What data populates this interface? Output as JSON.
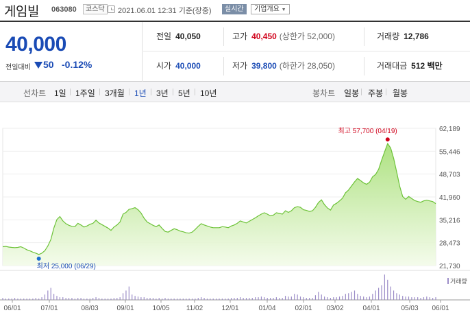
{
  "header": {
    "name": "게임빌",
    "code": "063080",
    "market": "코스닥",
    "timestamp": "2021.06.01 12:31  기준(장중)",
    "realtime": "실시간",
    "company_info": "기업개요"
  },
  "quote": {
    "price": "40,000",
    "compare_label": "전일대비",
    "change": "50",
    "change_rate": "-0.12%",
    "prev_close_label": "전일",
    "prev_close": "40,050",
    "high_label": "고가",
    "high": "40,450",
    "upper_limit": "(상한가 52,000)",
    "volume_label": "거래량",
    "volume": "12,786",
    "open_label": "시가",
    "open": "40,000",
    "low_label": "저가",
    "low": "39,800",
    "lower_limit": "(하한가 28,050)",
    "amount_label": "거래대금",
    "amount": "512 백만",
    "colors": {
      "up": "#d0021b",
      "down": "#1a4bb5"
    }
  },
  "tabs": {
    "line_label": "선차트",
    "periods": [
      "1일",
      "1주일",
      "3개월",
      "1년",
      "3년",
      "5년",
      "10년"
    ],
    "active_period": "1년",
    "candle_label": "봉차트",
    "candles": [
      "일봉",
      "주봉",
      "월봉"
    ]
  },
  "chart_data": {
    "type": "area",
    "x_start": "06/01",
    "x_end": "06/01",
    "x_tick_labels": [
      "06/01",
      "07/01",
      "08/03",
      "09/01",
      "10/05",
      "11/02",
      "12/01",
      "01/04",
      "02/01",
      "03/02",
      "04/01",
      "05/03",
      "06/01"
    ],
    "y_tick_labels": [
      "62,189",
      "55,446",
      "48,703",
      "41,960",
      "35,216",
      "28,473",
      "21,730"
    ],
    "ylim": [
      21730,
      62189
    ],
    "max_annotation": "최고 57,700 (04/19)",
    "min_annotation": "최저 25,000 (06/29)",
    "volume_label": "거래량",
    "prices": [
      27300,
      27400,
      27200,
      27100,
      27000,
      27100,
      27300,
      26900,
      26400,
      26100,
      25700,
      25400,
      25000,
      25400,
      26100,
      27500,
      29400,
      32800,
      35300,
      36200,
      34900,
      34100,
      33600,
      33300,
      33200,
      34200,
      33700,
      33100,
      33400,
      33900,
      34200,
      35100,
      34300,
      33800,
      33300,
      32800,
      32100,
      33100,
      33700,
      34600,
      36900,
      37400,
      38300,
      38500,
      38800,
      38200,
      37200,
      35700,
      34600,
      34100,
      33600,
      33200,
      33700,
      32700,
      31800,
      31600,
      32100,
      32600,
      32300,
      31900,
      31700,
      31400,
      31300,
      31600,
      32400,
      33300,
      34100,
      33700,
      33400,
      33100,
      32900,
      32900,
      32900,
      33200,
      33100,
      32900,
      33400,
      33700,
      34200,
      34900,
      34600,
      34300,
      34800,
      35300,
      35800,
      36400,
      36900,
      37300,
      36900,
      36400,
      36600,
      37300,
      37100,
      36900,
      37900,
      37400,
      37900,
      38800,
      39100,
      38900,
      38200,
      38000,
      37700,
      37900,
      38900,
      40300,
      41100,
      39700,
      38700,
      38100,
      39600,
      40100,
      40800,
      41600,
      43200,
      44000,
      45200,
      46400,
      47400,
      46800,
      46100,
      45700,
      46300,
      47900,
      48600,
      50100,
      52800,
      55300,
      57700,
      56400,
      53300,
      49400,
      45200,
      42100,
      41300,
      42100,
      41500,
      40900,
      40600,
      40400,
      40800,
      41000,
      40800,
      40600,
      40000
    ],
    "volumes": [
      3,
      2,
      2,
      2,
      3,
      2,
      2,
      2,
      2,
      2,
      2,
      3,
      2,
      4,
      8,
      14,
      18,
      9,
      6,
      4,
      4,
      3,
      3,
      3,
      2,
      3,
      3,
      2,
      2,
      2,
      3,
      4,
      3,
      2,
      2,
      2,
      2,
      3,
      3,
      4,
      10,
      14,
      20,
      8,
      6,
      5,
      4,
      4,
      3,
      3,
      3,
      2,
      3,
      2,
      3,
      2,
      2,
      2,
      2,
      2,
      2,
      2,
      2,
      2,
      2,
      3,
      4,
      3,
      2,
      2,
      2,
      2,
      2,
      2,
      2,
      2,
      3,
      3,
      3,
      4,
      3,
      3,
      3,
      3,
      4,
      4,
      5,
      4,
      3,
      3,
      3,
      4,
      3,
      3,
      6,
      5,
      5,
      9,
      8,
      5,
      4,
      3,
      3,
      3,
      7,
      12,
      8,
      5,
      4,
      3,
      4,
      4,
      5,
      6,
      9,
      10,
      12,
      14,
      9,
      6,
      5,
      4,
      5,
      9,
      14,
      18,
      22,
      38,
      30,
      20,
      14,
      10,
      8,
      6,
      5,
      5,
      4,
      4,
      4,
      3,
      4,
      5,
      4,
      3,
      4
    ]
  }
}
